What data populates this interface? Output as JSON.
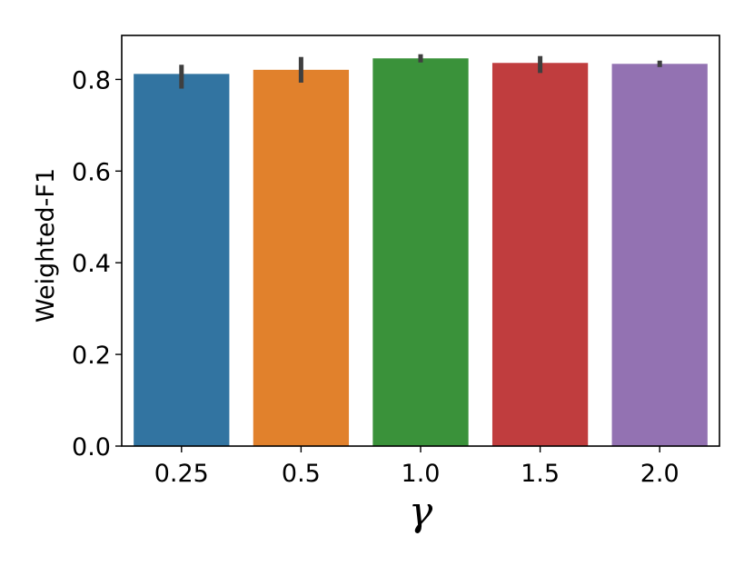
{
  "chart_data": {
    "type": "bar",
    "title": "",
    "xlabel": "γ",
    "ylabel": "Weighted-F1",
    "categories": [
      "0.25",
      "0.5",
      "1.0",
      "1.5",
      "2.0"
    ],
    "values": [
      0.812,
      0.821,
      0.846,
      0.836,
      0.834
    ],
    "error_bars": [
      [
        0.78,
        0.832
      ],
      [
        0.793,
        0.849
      ],
      [
        0.837,
        0.855
      ],
      [
        0.814,
        0.851
      ],
      [
        0.827,
        0.841
      ]
    ],
    "colors": [
      "#3274a1",
      "#e1812c",
      "#3a923a",
      "#c03d3e",
      "#9372b2"
    ],
    "error_color": "#3f3f3f",
    "ylim": [
      0,
      0.896
    ],
    "yticks": [
      "0.0",
      "0.2",
      "0.4",
      "0.6",
      "0.8"
    ],
    "grid": false,
    "legend": "none"
  }
}
